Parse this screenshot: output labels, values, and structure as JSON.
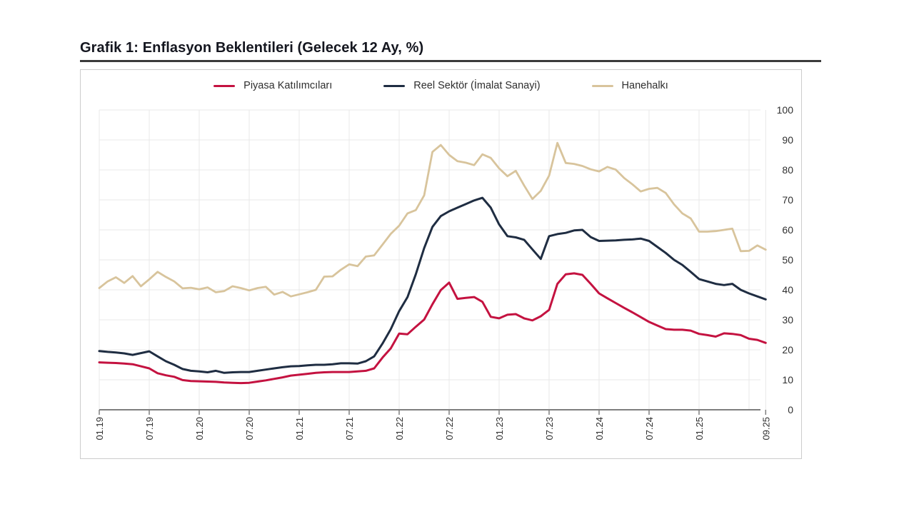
{
  "header": {
    "title": "Grafik 1: Enflasyon Beklentileri (Gelecek 12 Ay, %)"
  },
  "legend": [
    {
      "label": "Piyasa Katılımcıları",
      "color": "#c41240"
    },
    {
      "label": "Reel Sektör (İmalat Sanayi)",
      "color": "#1f2d42"
    },
    {
      "label": "Hanehalkı",
      "color": "#d8c49c"
    }
  ],
  "chart_data": {
    "type": "line",
    "title": "Grafik 1: Enflasyon Beklentileri (Gelecek 12 Ay, %)",
    "x_monthly_start": "2019-01",
    "x_monthly_end": "2025-09",
    "x_tick_labels": [
      "01.19",
      "07.19",
      "01.20",
      "07.20",
      "01.21",
      "07.21",
      "01.22",
      "07.22",
      "01.23",
      "07.23",
      "01.24",
      "07.24",
      "01.25",
      "09.25"
    ],
    "x_tick_month_indices": [
      0,
      6,
      12,
      18,
      24,
      30,
      36,
      42,
      48,
      54,
      60,
      66,
      72,
      80
    ],
    "x_gridline_month_indices": [
      0,
      6,
      12,
      18,
      24,
      30,
      36,
      42,
      48,
      54,
      60,
      66,
      72,
      78,
      80
    ],
    "y_ticks": [
      0,
      10,
      20,
      30,
      40,
      50,
      60,
      70,
      80,
      90,
      100
    ],
    "ylim": [
      0,
      100
    ],
    "grid": true,
    "legend_position": "top",
    "axis_color": "#7f7f7f",
    "grid_color": "#e8e8e8",
    "tick_label_color": "#2f2f2f",
    "months": [
      "2019-01",
      "2019-02",
      "2019-03",
      "2019-04",
      "2019-05",
      "2019-06",
      "2019-07",
      "2019-08",
      "2019-09",
      "2019-10",
      "2019-11",
      "2019-12",
      "2020-01",
      "2020-02",
      "2020-03",
      "2020-04",
      "2020-05",
      "2020-06",
      "2020-07",
      "2020-08",
      "2020-09",
      "2020-10",
      "2020-11",
      "2020-12",
      "2021-01",
      "2021-02",
      "2021-03",
      "2021-04",
      "2021-05",
      "2021-06",
      "2021-07",
      "2021-08",
      "2021-09",
      "2021-10",
      "2021-11",
      "2021-12",
      "2022-01",
      "2022-02",
      "2022-03",
      "2022-04",
      "2022-05",
      "2022-06",
      "2022-07",
      "2022-08",
      "2022-09",
      "2022-10",
      "2022-11",
      "2022-12",
      "2023-01",
      "2023-02",
      "2023-03",
      "2023-04",
      "2023-05",
      "2023-06",
      "2023-07",
      "2023-08",
      "2023-09",
      "2023-10",
      "2023-11",
      "2023-12",
      "2024-01",
      "2024-02",
      "2024-03",
      "2024-04",
      "2024-05",
      "2024-06",
      "2024-07",
      "2024-08",
      "2024-09",
      "2024-10",
      "2024-11",
      "2024-12",
      "2025-01",
      "2025-02",
      "2025-03",
      "2025-04",
      "2025-05",
      "2025-06",
      "2025-07",
      "2025-08",
      "2025-09"
    ],
    "series": [
      {
        "name": "Piyasa Katılımcıları",
        "color": "#c41240",
        "width": 3,
        "values": [
          15.8,
          15.7,
          15.6,
          15.4,
          15.2,
          14.5,
          13.8,
          12.2,
          11.5,
          11.0,
          9.9,
          9.6,
          9.5,
          9.4,
          9.3,
          9.1,
          9.0,
          8.9,
          9.0,
          9.4,
          9.8,
          10.3,
          10.8,
          11.4,
          11.7,
          12.0,
          12.3,
          12.5,
          12.6,
          12.6,
          12.6,
          12.8,
          13.0,
          13.8,
          17.4,
          20.5,
          25.4,
          25.2,
          27.7,
          30.1,
          35.2,
          39.9,
          42.4,
          37.0,
          37.3,
          37.6,
          36.0,
          31.0,
          30.5,
          31.7,
          31.9,
          30.5,
          29.8,
          31.2,
          33.3,
          42.0,
          45.2,
          45.5,
          45.0,
          42.0,
          38.8,
          37.2,
          35.6,
          34.0,
          32.5,
          30.9,
          29.3,
          28.1,
          26.9,
          26.7,
          26.7,
          26.4,
          25.3,
          24.9,
          24.4,
          25.5,
          25.3,
          24.9,
          23.7,
          23.3,
          22.3
        ]
      },
      {
        "name": "Reel Sektör (İmalat Sanayi)",
        "color": "#1f2d42",
        "width": 3,
        "values": [
          19.6,
          19.3,
          19.1,
          18.8,
          18.3,
          18.9,
          19.5,
          17.8,
          16.2,
          15.0,
          13.6,
          13.0,
          12.8,
          12.5,
          13.0,
          12.3,
          12.5,
          12.6,
          12.6,
          13.0,
          13.4,
          13.8,
          14.2,
          14.5,
          14.6,
          14.8,
          15.0,
          15.0,
          15.2,
          15.5,
          15.5,
          15.4,
          16.2,
          17.8,
          22.1,
          26.9,
          32.9,
          37.6,
          45.2,
          53.9,
          61.0,
          64.6,
          66.2,
          67.4,
          68.6,
          69.8,
          70.7,
          67.4,
          61.8,
          57.9,
          57.5,
          56.7,
          53.5,
          50.3,
          57.9,
          58.6,
          59.0,
          59.8,
          60.0,
          57.6,
          56.3,
          56.4,
          56.5,
          56.7,
          56.8,
          57.1,
          56.3,
          54.3,
          52.3,
          50.0,
          48.3,
          46.0,
          43.6,
          42.8,
          42.0,
          41.6,
          42.0,
          40.0,
          38.8,
          37.8,
          36.8
        ]
      },
      {
        "name": "Hanehalkı",
        "color": "#d8c49c",
        "width": 2.8,
        "values": [
          40.6,
          42.8,
          44.2,
          42.3,
          44.6,
          41.2,
          43.5,
          46.0,
          44.3,
          42.8,
          40.5,
          40.7,
          40.2,
          40.8,
          39.2,
          39.6,
          41.2,
          40.6,
          39.8,
          40.6,
          41.0,
          38.4,
          39.3,
          37.8,
          38.5,
          39.2,
          40.0,
          44.4,
          44.5,
          46.7,
          48.5,
          47.9,
          51.1,
          51.5,
          55.1,
          58.7,
          61.4,
          65.5,
          66.6,
          71.5,
          86.0,
          88.3,
          85.0,
          82.9,
          82.4,
          81.6,
          85.2,
          84.0,
          80.5,
          77.9,
          79.7,
          74.8,
          70.3,
          73.0,
          78.1,
          89.0,
          82.3,
          82.0,
          81.3,
          80.2,
          79.5,
          81.0,
          80.1,
          77.3,
          75.2,
          72.8,
          73.7,
          74.0,
          72.3,
          68.5,
          65.5,
          63.8,
          59.4,
          59.4,
          59.6,
          60.0,
          60.4,
          52.9,
          53.0,
          54.8,
          53.4
        ]
      }
    ]
  }
}
